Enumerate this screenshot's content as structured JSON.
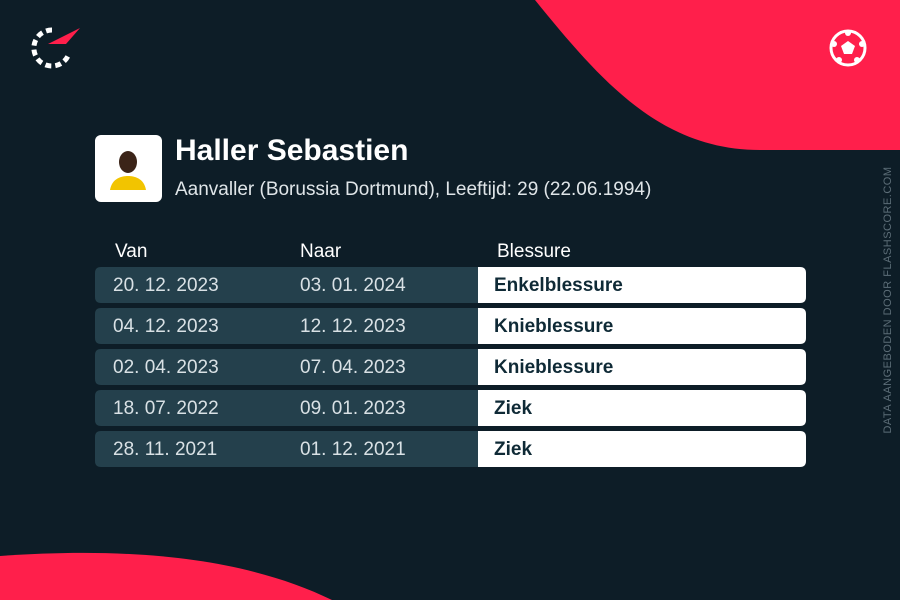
{
  "header": {
    "name": "Haller Sebastien",
    "subtitle": "Aanvaller (Borussia Dortmund), Leeftijd: 29 (22.06.1994)"
  },
  "table": {
    "columns": [
      "Van",
      "Naar",
      "Blessure"
    ],
    "rows": [
      [
        "20. 12. 2023",
        "03. 01. 2024",
        "Enkelblessure"
      ],
      [
        "04. 12. 2023",
        "12. 12. 2023",
        "Knieblessure"
      ],
      [
        "02. 04. 2023",
        "07. 04. 2023",
        "Knieblessure"
      ],
      [
        "18. 07. 2022",
        "09. 01. 2023",
        "Ziek"
      ],
      [
        "28. 11. 2021",
        "01. 12. 2021",
        "Ziek"
      ]
    ]
  },
  "source": "DATA AANGEBODEN DOOR FLASHSCORE.COM"
}
